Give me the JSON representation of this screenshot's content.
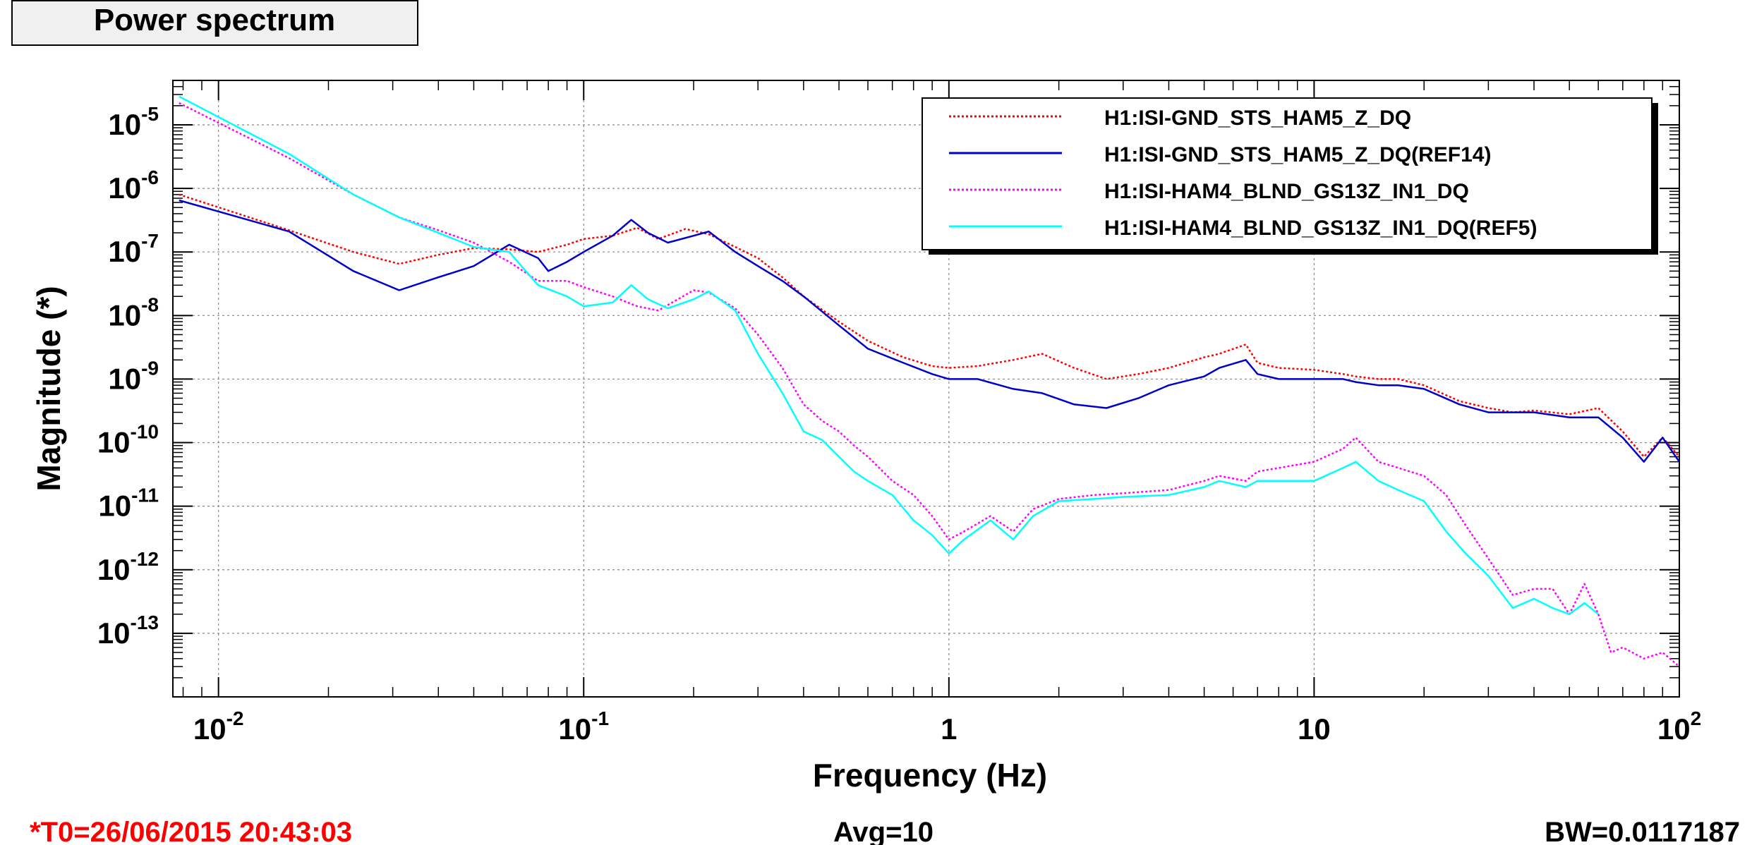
{
  "title": "Power spectrum",
  "footer": {
    "t0": "*T0=26/06/2015 20:43:03",
    "avg": "Avg=10",
    "bw": "BW=0.0117187"
  },
  "colors": {
    "red": "#ff0000",
    "blue": "#0000cc",
    "magenta": "#ff00ff",
    "cyan": "#00ffff",
    "t0_text": "#ff0000"
  },
  "chart_data": {
    "type": "line",
    "xlabel": "Frequency (Hz)",
    "ylabel": "Magnitude (*)",
    "x_scale": "log",
    "y_scale": "log",
    "xlim": [
      0.0075,
      100
    ],
    "ylim": [
      1e-14,
      5e-05
    ],
    "grid": true,
    "legend_position": "top-right",
    "x_ticks": [
      {
        "value": 0.01,
        "base": "10",
        "exp": "-2"
      },
      {
        "value": 0.1,
        "base": "10",
        "exp": "-1"
      },
      {
        "value": 1,
        "base": "1",
        "exp": ""
      },
      {
        "value": 10,
        "base": "10",
        "exp": ""
      },
      {
        "value": 100,
        "base": "10",
        "exp": "2"
      }
    ],
    "y_ticks": [
      {
        "value": 1e-05,
        "base": "10",
        "exp": "-5"
      },
      {
        "value": 1e-06,
        "base": "10",
        "exp": "-6"
      },
      {
        "value": 1e-07,
        "base": "10",
        "exp": "-7"
      },
      {
        "value": 1e-08,
        "base": "10",
        "exp": "-8"
      },
      {
        "value": 1e-09,
        "base": "10",
        "exp": "-9"
      },
      {
        "value": 1e-10,
        "base": "10",
        "exp": "-10"
      },
      {
        "value": 1e-11,
        "base": "10",
        "exp": "-11"
      },
      {
        "value": 1e-12,
        "base": "10",
        "exp": "-12"
      },
      {
        "value": 1e-13,
        "base": "10",
        "exp": "-13"
      }
    ],
    "series": [
      {
        "name": "H1:ISI-GND_STS_HAM5_Z_DQ",
        "color": "#ff0000",
        "style": "dotted",
        "x": [
          0.0078,
          0.0156,
          0.0234,
          0.03125,
          0.04,
          0.05,
          0.0625,
          0.075,
          0.09,
          0.1,
          0.12,
          0.14,
          0.16,
          0.19,
          0.22,
          0.26,
          0.3,
          0.35,
          0.4,
          0.5,
          0.6,
          0.75,
          0.9,
          1.0,
          1.2,
          1.5,
          1.8,
          2.2,
          2.7,
          3.3,
          4.0,
          5.0,
          5.5,
          6.5,
          7.0,
          8.0,
          10,
          12,
          13,
          15,
          17,
          20,
          25,
          30,
          35,
          40,
          50,
          60,
          70,
          80,
          90,
          100
        ],
        "y": [
          8e-07,
          2.2e-07,
          1e-07,
          6.5e-08,
          9e-08,
          1.15e-07,
          1.1e-07,
          1e-07,
          1.3e-07,
          1.6e-07,
          1.8e-07,
          2.4e-07,
          1.6e-07,
          2.3e-07,
          1.9e-07,
          1.2e-07,
          8e-08,
          4e-08,
          2e-08,
          8e-09,
          4e-09,
          2.2e-09,
          1.6e-09,
          1.5e-09,
          1.6e-09,
          2e-09,
          2.5e-09,
          1.5e-09,
          1e-09,
          1.2e-09,
          1.5e-09,
          2.2e-09,
          2.5e-09,
          3.5e-09,
          1.8e-09,
          1.5e-09,
          1.4e-09,
          1.2e-09,
          1.1e-09,
          1e-09,
          1e-09,
          8e-10,
          4.5e-10,
          3.5e-10,
          3e-10,
          3.2e-10,
          2.8e-10,
          3.5e-10,
          1.5e-10,
          6e-11,
          1.2e-10,
          6e-11
        ]
      },
      {
        "name": "H1:ISI-GND_STS_HAM5_Z_DQ(REF14)",
        "color": "#0000cc",
        "style": "solid",
        "x": [
          0.0078,
          0.0156,
          0.0234,
          0.03125,
          0.04,
          0.05,
          0.0625,
          0.075,
          0.08,
          0.09,
          0.1,
          0.12,
          0.135,
          0.15,
          0.17,
          0.2,
          0.22,
          0.26,
          0.3,
          0.35,
          0.4,
          0.5,
          0.6,
          0.75,
          0.9,
          1.0,
          1.2,
          1.5,
          1.8,
          2.2,
          2.7,
          3.3,
          4.0,
          5.0,
          5.5,
          6.5,
          7.0,
          8.0,
          10,
          12,
          13,
          15,
          17,
          20,
          25,
          30,
          35,
          40,
          50,
          60,
          70,
          80,
          90,
          100
        ],
        "y": [
          6.5e-07,
          2.1e-07,
          5e-08,
          2.5e-08,
          4e-08,
          6e-08,
          1.3e-07,
          8e-08,
          5e-08,
          7e-08,
          1e-07,
          1.8e-07,
          3.2e-07,
          2e-07,
          1.4e-07,
          1.8e-07,
          2.1e-07,
          1e-07,
          6e-08,
          3.5e-08,
          2e-08,
          7e-09,
          3e-09,
          1.8e-09,
          1.2e-09,
          1e-09,
          1e-09,
          7e-10,
          6e-10,
          4e-10,
          3.5e-10,
          5e-10,
          8e-10,
          1.1e-09,
          1.5e-09,
          2e-09,
          1.2e-09,
          1e-09,
          1e-09,
          1e-09,
          9e-10,
          8e-10,
          8e-10,
          7e-10,
          4e-10,
          3e-10,
          3e-10,
          3e-10,
          2.5e-10,
          2.5e-10,
          1.2e-10,
          5e-11,
          1.2e-10,
          5e-11
        ]
      },
      {
        "name": "H1:ISI-HAM4_BLND_GS13Z_IN1_DQ",
        "color": "#ff00ff",
        "style": "dotted",
        "x": [
          0.0078,
          0.0156,
          0.0234,
          0.03125,
          0.04,
          0.05,
          0.0625,
          0.075,
          0.09,
          0.1,
          0.12,
          0.14,
          0.16,
          0.2,
          0.22,
          0.26,
          0.3,
          0.35,
          0.4,
          0.45,
          0.5,
          0.55,
          0.6,
          0.7,
          0.8,
          0.9,
          1.0,
          1.1,
          1.3,
          1.5,
          1.7,
          2.0,
          2.5,
          3.0,
          4.0,
          5.0,
          5.5,
          6.5,
          7.0,
          8.0,
          10,
          12,
          13,
          15,
          17,
          20,
          23,
          26,
          30,
          35,
          40,
          45,
          50,
          55,
          60,
          65,
          70,
          80,
          90,
          100
        ],
        "y": [
          2.2e-05,
          3e-06,
          8e-07,
          3.5e-07,
          2.2e-07,
          1.4e-07,
          7e-08,
          3.5e-08,
          3.5e-08,
          2.8e-08,
          2e-08,
          1.4e-08,
          1.2e-08,
          2.5e-08,
          2.3e-08,
          1.3e-08,
          5e-09,
          1.5e-09,
          4e-10,
          2.2e-10,
          1.5e-10,
          9e-11,
          6e-11,
          2.5e-11,
          1.5e-11,
          7e-12,
          3e-12,
          4e-12,
          7e-12,
          4e-12,
          9e-12,
          1.3e-11,
          1.5e-11,
          1.6e-11,
          1.8e-11,
          2.5e-11,
          3e-11,
          2.5e-11,
          3.5e-11,
          4e-11,
          5e-11,
          8e-11,
          1.2e-10,
          5e-11,
          4e-11,
          3e-11,
          1.5e-11,
          5e-12,
          1.5e-12,
          4e-13,
          5e-13,
          5e-13,
          2e-13,
          6e-13,
          2e-13,
          5e-14,
          6e-14,
          4e-14,
          5e-14,
          3e-14
        ]
      },
      {
        "name": "H1:ISI-HAM4_BLND_GS13Z_IN1_DQ(REF5)",
        "color": "#00ffff",
        "style": "solid",
        "x": [
          0.0078,
          0.0156,
          0.0234,
          0.03125,
          0.04,
          0.05,
          0.0625,
          0.075,
          0.09,
          0.1,
          0.12,
          0.135,
          0.15,
          0.17,
          0.2,
          0.22,
          0.26,
          0.3,
          0.35,
          0.4,
          0.45,
          0.5,
          0.55,
          0.6,
          0.7,
          0.8,
          0.9,
          1.0,
          1.1,
          1.3,
          1.5,
          1.7,
          2.0,
          2.5,
          3.0,
          4.0,
          5.0,
          5.5,
          6.5,
          7.0,
          8.0,
          10,
          12,
          13,
          15,
          17,
          20,
          23,
          26,
          30,
          35,
          40,
          45,
          50,
          55,
          60
        ],
        "y": [
          2.8e-05,
          3.5e-06,
          8e-07,
          3.5e-07,
          2e-07,
          1.2e-07,
          1e-07,
          3e-08,
          2e-08,
          1.4e-08,
          1.6e-08,
          3e-08,
          1.8e-08,
          1.3e-08,
          1.8e-08,
          2.4e-08,
          1.2e-08,
          2.5e-09,
          6e-10,
          1.5e-10,
          1.1e-10,
          6e-11,
          3.5e-11,
          2.5e-11,
          1.5e-11,
          6e-12,
          3.5e-12,
          1.8e-12,
          3e-12,
          6e-12,
          3e-12,
          7e-12,
          1.2e-11,
          1.3e-11,
          1.4e-11,
          1.5e-11,
          2e-11,
          2.5e-11,
          2e-11,
          2.5e-11,
          2.5e-11,
          2.5e-11,
          4e-11,
          5e-11,
          2.5e-11,
          1.8e-11,
          1.2e-11,
          4e-12,
          1.8e-12,
          8e-13,
          2.5e-13,
          3.5e-13,
          2.5e-13,
          2e-13,
          3e-13,
          2e-13
        ]
      }
    ]
  }
}
